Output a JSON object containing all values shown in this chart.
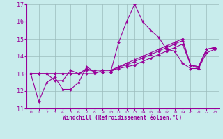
{
  "title": "",
  "xlabel": "Windchill (Refroidissement éolien,°C)",
  "ylabel": "",
  "bg_color": "#c8ecec",
  "grid_color": "#9bbcbc",
  "line_color": "#990099",
  "xlim": [
    -0.5,
    23.5
  ],
  "ylim": [
    11,
    17
  ],
  "yticks": [
    11,
    12,
    13,
    14,
    15,
    16,
    17
  ],
  "xticks": [
    0,
    1,
    2,
    3,
    4,
    5,
    6,
    7,
    8,
    9,
    10,
    11,
    12,
    13,
    14,
    15,
    16,
    17,
    18,
    19,
    20,
    21,
    22,
    23
  ],
  "series": [
    [
      13.0,
      11.4,
      12.5,
      12.8,
      12.1,
      12.1,
      12.5,
      13.4,
      13.1,
      13.1,
      13.1,
      14.8,
      16.0,
      17.0,
      16.0,
      15.5,
      15.1,
      14.4,
      14.3,
      13.6,
      13.3,
      13.3,
      14.4,
      14.5
    ],
    [
      13.0,
      13.0,
      13.0,
      12.6,
      12.6,
      13.2,
      13.0,
      13.3,
      13.1,
      13.1,
      13.1,
      13.4,
      13.6,
      13.8,
      14.0,
      14.2,
      14.4,
      14.6,
      14.8,
      15.0,
      13.5,
      13.4,
      14.4,
      14.5
    ],
    [
      13.0,
      13.0,
      13.0,
      13.0,
      13.0,
      13.0,
      13.0,
      13.2,
      13.2,
      13.2,
      13.2,
      13.4,
      13.5,
      13.7,
      13.9,
      14.1,
      14.3,
      14.5,
      14.7,
      14.9,
      13.5,
      13.4,
      14.4,
      14.5
    ],
    [
      13.0,
      13.0,
      13.0,
      13.0,
      13.0,
      13.0,
      13.0,
      13.0,
      13.0,
      13.2,
      13.2,
      13.3,
      13.4,
      13.5,
      13.7,
      13.9,
      14.1,
      14.3,
      14.5,
      14.7,
      13.5,
      13.3,
      14.2,
      14.4
    ]
  ],
  "xlabel_fontsize": 5.5,
  "ylabel_fontsize": 6,
  "xtick_fontsize": 4.5,
  "ytick_fontsize": 6,
  "linewidth": 0.8,
  "markersize": 2.0
}
